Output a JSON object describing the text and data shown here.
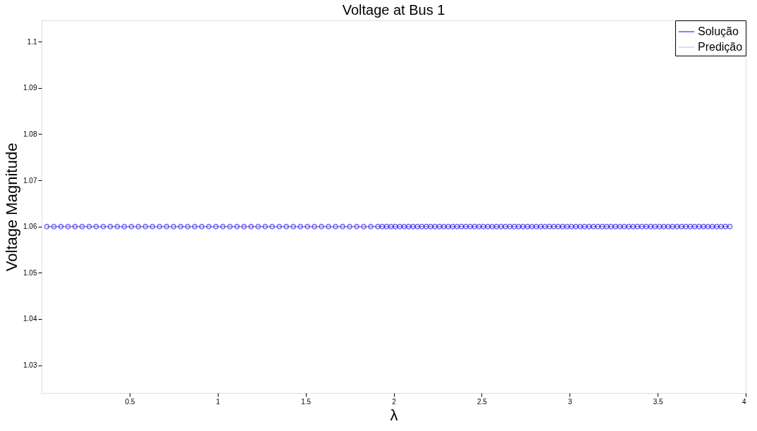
{
  "chart_data": {
    "type": "line",
    "title": "Voltage at Bus 1",
    "xlabel": "λ",
    "ylabel": "Voltage Magnitude",
    "x": [
      0.03,
      0.07,
      0.11,
      0.15,
      0.19,
      0.23,
      0.27,
      0.31,
      0.35,
      0.39,
      0.43,
      0.47,
      0.51,
      0.55,
      0.59,
      0.63,
      0.67,
      0.71,
      0.75,
      0.79,
      0.83,
      0.87,
      0.91,
      0.95,
      0.99,
      1.03,
      1.07,
      1.11,
      1.15,
      1.19,
      1.23,
      1.27,
      1.31,
      1.35,
      1.39,
      1.43,
      1.47,
      1.51,
      1.55,
      1.59,
      1.63,
      1.67,
      1.71,
      1.75,
      1.79,
      1.83,
      1.87,
      1.91,
      1.935,
      1.96,
      1.985,
      2.01,
      2.035,
      2.06,
      2.085,
      2.11,
      2.135,
      2.16,
      2.185,
      2.21,
      2.235,
      2.26,
      2.285,
      2.31,
      2.335,
      2.36,
      2.385,
      2.41,
      2.435,
      2.46,
      2.485,
      2.51,
      2.535,
      2.56,
      2.585,
      2.61,
      2.635,
      2.66,
      2.685,
      2.71,
      2.735,
      2.76,
      2.785,
      2.81,
      2.835,
      2.86,
      2.885,
      2.91,
      2.935,
      2.96,
      2.985,
      3.01,
      3.035,
      3.06,
      3.085,
      3.11,
      3.135,
      3.16,
      3.185,
      3.21,
      3.235,
      3.26,
      3.285,
      3.31,
      3.335,
      3.36,
      3.385,
      3.41,
      3.435,
      3.46,
      3.485,
      3.51,
      3.535,
      3.56,
      3.585,
      3.61,
      3.635,
      3.66,
      3.685,
      3.71,
      3.735,
      3.76,
      3.785,
      3.81,
      3.835,
      3.86,
      3.885,
      3.91
    ],
    "series": [
      {
        "name": "Solução",
        "color": "#0000ff",
        "marker": "circle",
        "values": [
          1.06,
          1.06,
          1.06,
          1.06,
          1.06,
          1.06,
          1.06,
          1.06,
          1.06,
          1.06,
          1.06,
          1.06,
          1.06,
          1.06,
          1.06,
          1.06,
          1.06,
          1.06,
          1.06,
          1.06,
          1.06,
          1.06,
          1.06,
          1.06,
          1.06,
          1.06,
          1.06,
          1.06,
          1.06,
          1.06,
          1.06,
          1.06,
          1.06,
          1.06,
          1.06,
          1.06,
          1.06,
          1.06,
          1.06,
          1.06,
          1.06,
          1.06,
          1.06,
          1.06,
          1.06,
          1.06,
          1.06,
          1.06,
          1.06,
          1.06,
          1.06,
          1.06,
          1.06,
          1.06,
          1.06,
          1.06,
          1.06,
          1.06,
          1.06,
          1.06,
          1.06,
          1.06,
          1.06,
          1.06,
          1.06,
          1.06,
          1.06,
          1.06,
          1.06,
          1.06,
          1.06,
          1.06,
          1.06,
          1.06,
          1.06,
          1.06,
          1.06,
          1.06,
          1.06,
          1.06,
          1.06,
          1.06,
          1.06,
          1.06,
          1.06,
          1.06,
          1.06,
          1.06,
          1.06,
          1.06,
          1.06,
          1.06,
          1.06,
          1.06,
          1.06,
          1.06,
          1.06,
          1.06,
          1.06,
          1.06,
          1.06,
          1.06,
          1.06,
          1.06,
          1.06,
          1.06,
          1.06,
          1.06,
          1.06,
          1.06,
          1.06,
          1.06,
          1.06,
          1.06,
          1.06,
          1.06,
          1.06,
          1.06,
          1.06,
          1.06,
          1.06,
          1.06,
          1.06,
          1.06,
          1.06,
          1.06,
          1.06,
          1.06
        ]
      },
      {
        "name": "Predição",
        "color": "#d9b3b3",
        "marker": "none",
        "values": [
          1.06,
          1.06,
          1.06,
          1.06,
          1.06,
          1.06,
          1.06,
          1.06,
          1.06,
          1.06,
          1.06,
          1.06,
          1.06,
          1.06,
          1.06,
          1.06,
          1.06,
          1.06,
          1.06,
          1.06,
          1.06,
          1.06,
          1.06,
          1.06,
          1.06,
          1.06,
          1.06,
          1.06,
          1.06,
          1.06,
          1.06,
          1.06,
          1.06,
          1.06,
          1.06,
          1.06,
          1.06,
          1.06,
          1.06,
          1.06,
          1.06,
          1.06,
          1.06,
          1.06,
          1.06,
          1.06,
          1.06,
          1.06,
          1.06,
          1.06,
          1.06,
          1.06,
          1.06,
          1.06,
          1.06,
          1.06,
          1.06,
          1.06,
          1.06,
          1.06,
          1.06,
          1.06,
          1.06,
          1.06,
          1.06,
          1.06,
          1.06,
          1.06,
          1.06,
          1.06,
          1.06,
          1.06,
          1.06,
          1.06,
          1.06,
          1.06,
          1.06,
          1.06,
          1.06,
          1.06,
          1.06,
          1.06,
          1.06,
          1.06,
          1.06,
          1.06,
          1.06,
          1.06,
          1.06,
          1.06,
          1.06,
          1.06,
          1.06,
          1.06,
          1.06,
          1.06,
          1.06,
          1.06,
          1.06,
          1.06,
          1.06,
          1.06,
          1.06,
          1.06,
          1.06,
          1.06,
          1.06,
          1.06,
          1.06,
          1.06,
          1.06,
          1.06,
          1.06,
          1.06,
          1.06,
          1.06,
          1.06,
          1.06,
          1.06,
          1.06,
          1.06,
          1.06,
          1.06,
          1.06,
          1.06,
          1.06,
          1.06,
          1.06
        ]
      }
    ],
    "xlim": [
      0,
      4
    ],
    "ylim": [
      1.024,
      1.1046
    ],
    "xticks": [
      0.5,
      1,
      1.5,
      2,
      2.5,
      3,
      3.5,
      4
    ],
    "yticks": [
      1.03,
      1.04,
      1.05,
      1.06,
      1.07,
      1.08,
      1.09,
      1.1
    ],
    "grid": false,
    "legend": "top right",
    "line_style": "solid"
  }
}
